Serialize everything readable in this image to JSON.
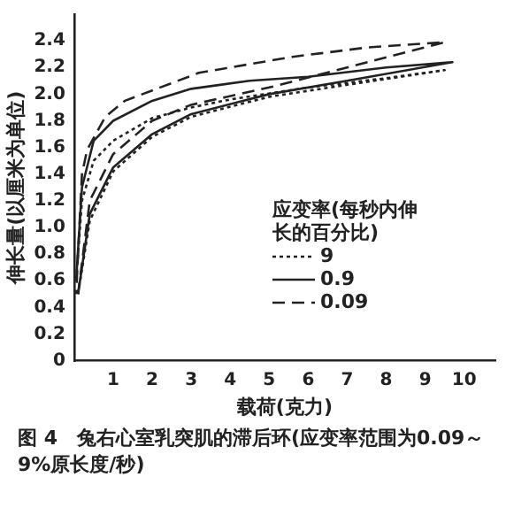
{
  "chart_data": {
    "type": "line",
    "title": "图 4　兔右心室乳突肌的滞后环(应变率范围为0.09～9%原长度/秒)",
    "xlabel": "载荷(克力)",
    "ylabel": "伸长量(以厘米为单位)",
    "legend_title": "应变率(每秒内伸长的百分比)",
    "xlim": [
      0,
      10.8
    ],
    "xticks": [
      1,
      2,
      3,
      4,
      5,
      6,
      7,
      8,
      9,
      10
    ],
    "ylim": [
      0,
      2.6
    ],
    "yticks": [
      0,
      0.2,
      0.4,
      0.6,
      0.8,
      {
        "value": 1,
        "label": "1.0"
      },
      1.2,
      1.4,
      1.6,
      1.8,
      {
        "value": 2,
        "label": "2.0"
      },
      2.2,
      2.4
    ],
    "grid": false,
    "legend": "bottom right",
    "marker": "none",
    "series": [
      {
        "name": "9",
        "color": "#222222",
        "line_style": "dotted",
        "x": [
          0.1,
          0.4,
          1,
          2,
          3,
          5,
          7,
          9.5,
          8,
          6,
          4,
          3,
          2,
          1,
          0.5,
          0.2,
          0.05
        ],
        "values": [
          0.5,
          1.05,
          1.42,
          1.68,
          1.83,
          1.98,
          2.07,
          2.18,
          2.12,
          2.05,
          1.96,
          1.9,
          1.82,
          1.65,
          1.5,
          1.2,
          0.6
        ]
      },
      {
        "name": "0.9",
        "color": "#222222",
        "line_style": "solid",
        "x": [
          0.1,
          0.4,
          1,
          2,
          3,
          5,
          7,
          9.7,
          8,
          6,
          4.5,
          3,
          2,
          1,
          0.5,
          0.2,
          0.05
        ],
        "values": [
          0.5,
          1.1,
          1.45,
          1.7,
          1.85,
          2,
          2.1,
          2.24,
          2.2,
          2.13,
          2.1,
          2.04,
          1.95,
          1.8,
          1.65,
          1.3,
          0.6
        ]
      },
      {
        "name": "0.09",
        "color": "#222222",
        "line_style": "dashed",
        "x": [
          0.1,
          0.4,
          1,
          2,
          3,
          5,
          7,
          9.5,
          7.5,
          5.6,
          3.2,
          1.3,
          0.8,
          0.33,
          0.2,
          0.05
        ],
        "values": [
          0.5,
          1.2,
          1.55,
          1.8,
          1.92,
          2.05,
          2.2,
          2.39,
          2.35,
          2.28,
          2.16,
          1.95,
          1.83,
          1.58,
          1.4,
          0.5
        ]
      }
    ]
  }
}
